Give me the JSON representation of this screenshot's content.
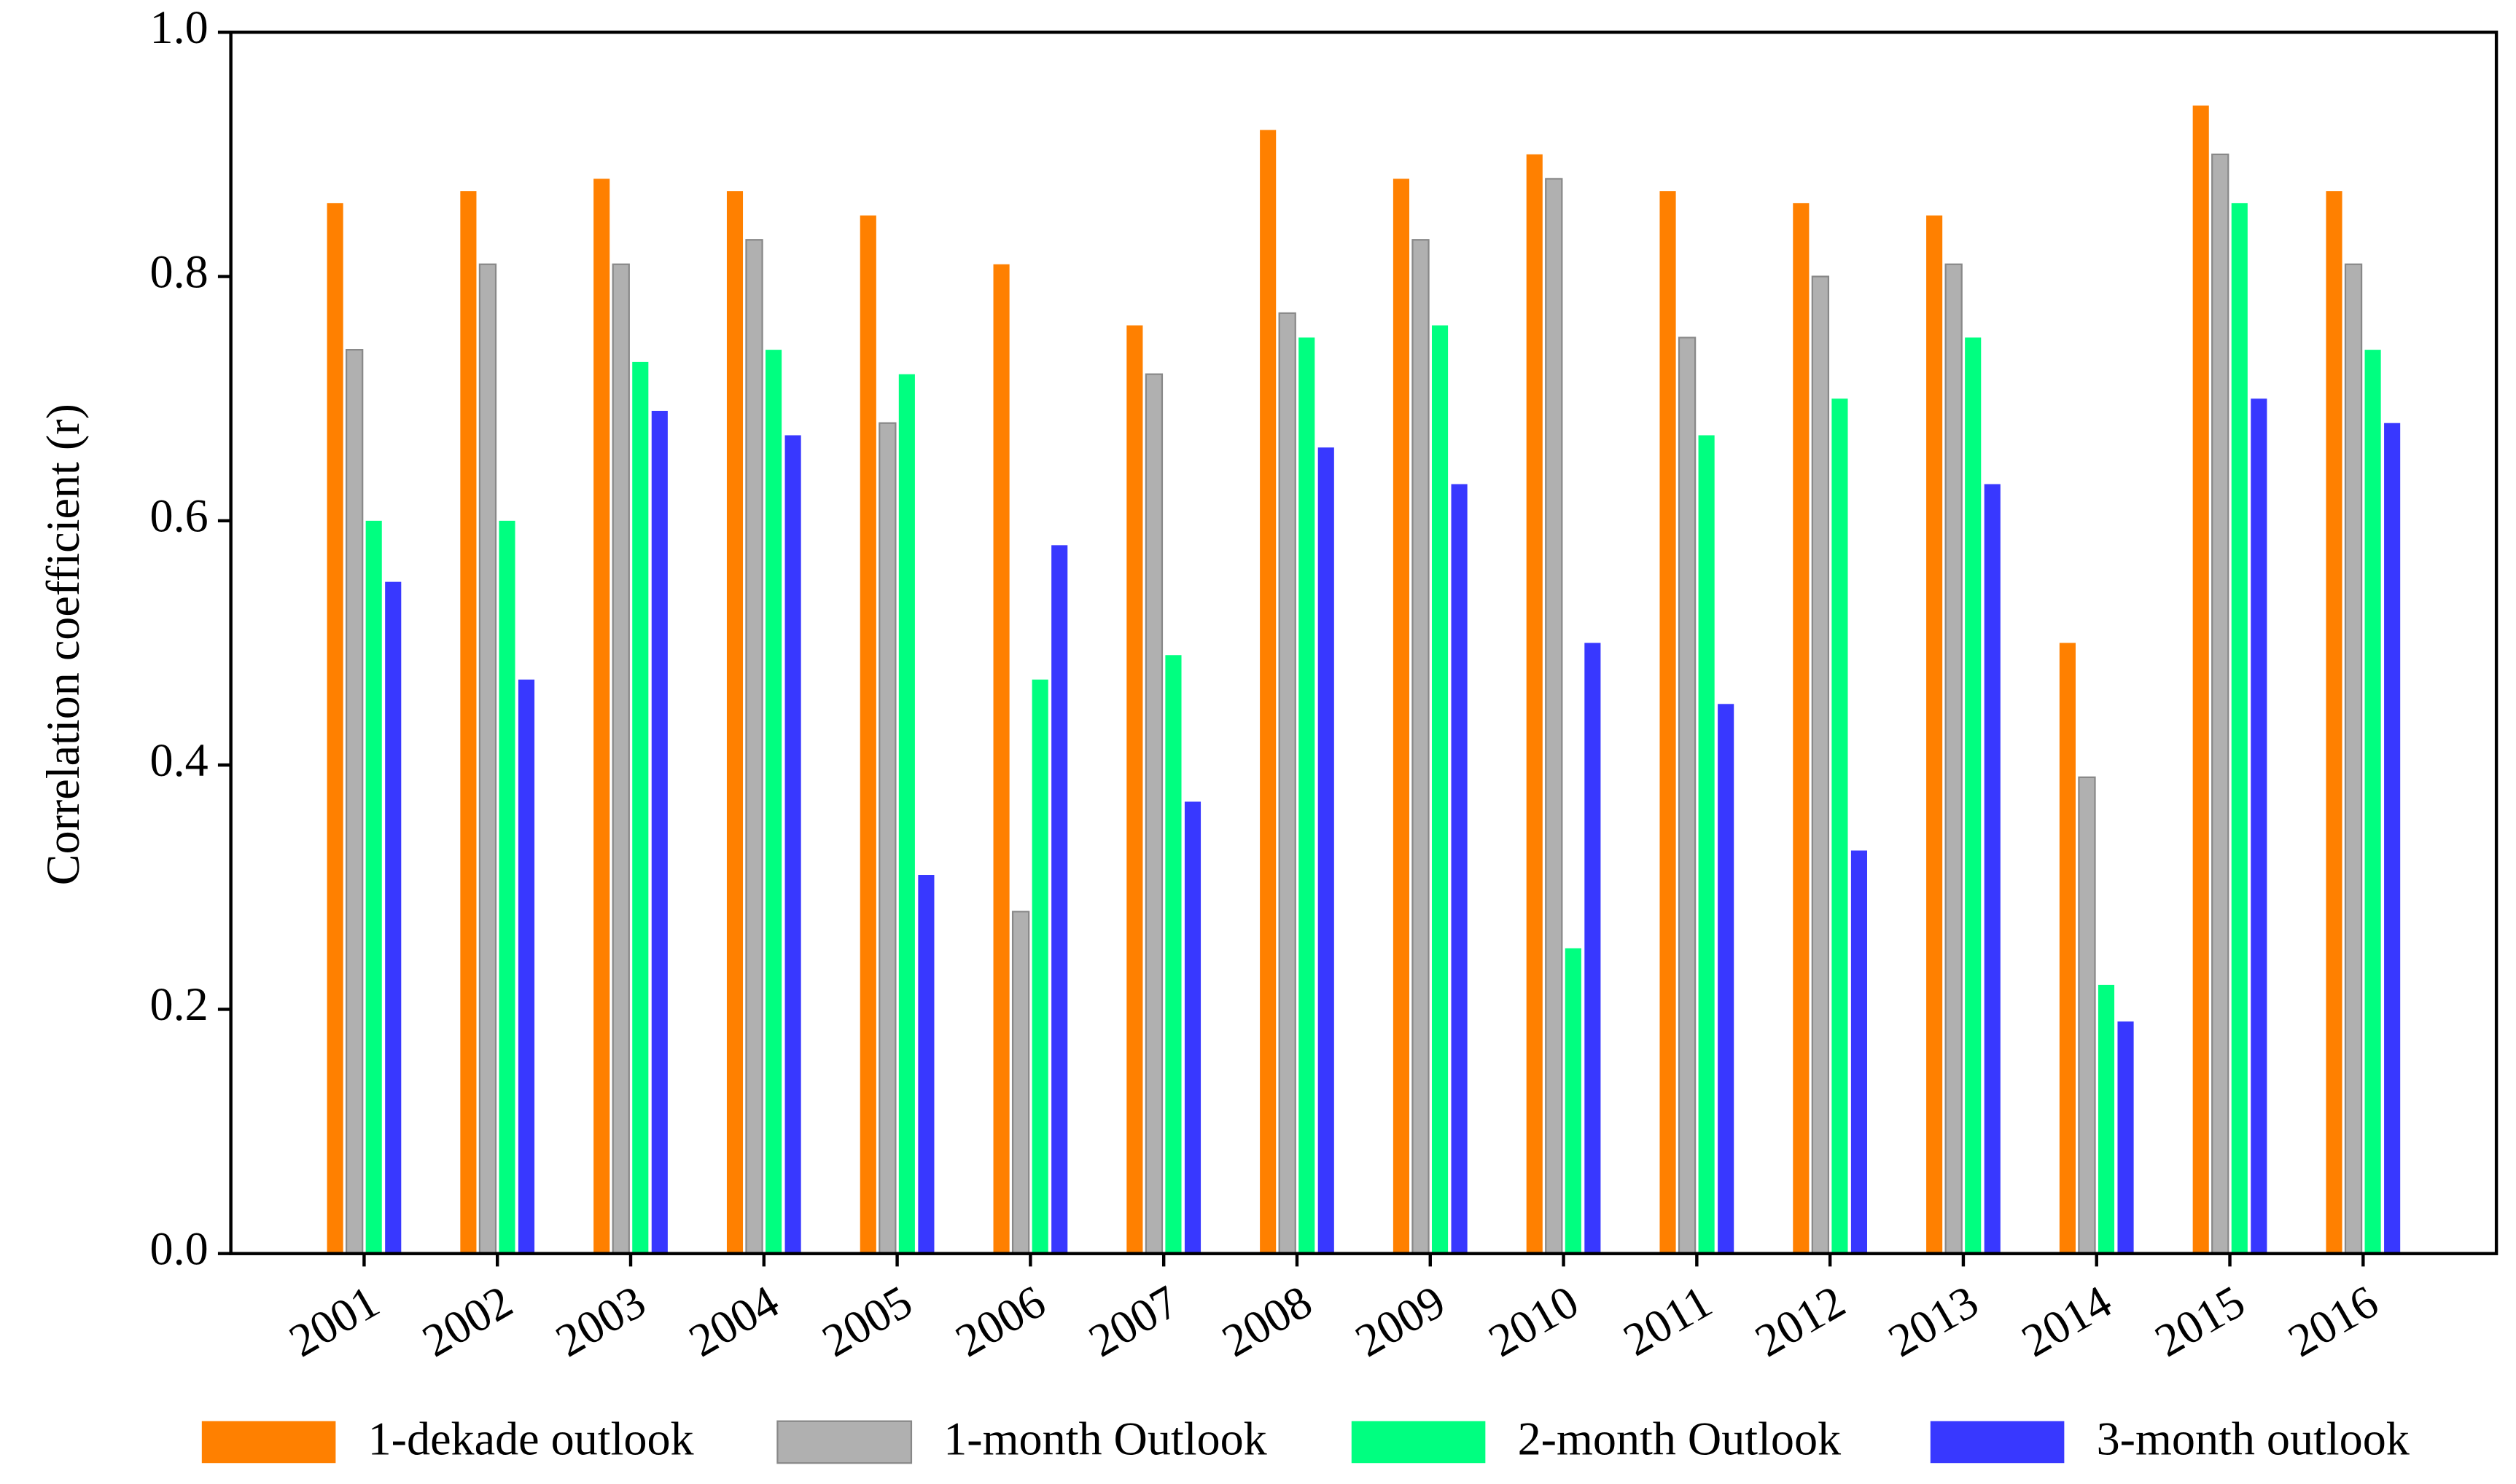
{
  "chart_data": {
    "type": "bar",
    "y_label": "Correlation coefficient (r)",
    "categories": [
      "2001",
      "2002",
      "2003",
      "2004",
      "2005",
      "2006",
      "2007",
      "2008",
      "2009",
      "2010",
      "2011",
      "2012",
      "2013",
      "2014",
      "2015",
      "2016"
    ],
    "series": [
      {
        "name": "1-dekade outlook",
        "color": "#ff8000",
        "values": [
          0.86,
          0.87,
          0.88,
          0.87,
          0.85,
          0.81,
          0.76,
          0.92,
          0.88,
          0.9,
          0.87,
          0.86,
          0.85,
          0.5,
          0.94,
          0.87
        ]
      },
      {
        "name": "1-month Outlook",
        "color": "#b0b0b0",
        "values": [
          0.74,
          0.81,
          0.81,
          0.83,
          0.68,
          0.28,
          0.72,
          0.77,
          0.83,
          0.88,
          0.75,
          0.8,
          0.81,
          0.39,
          0.9,
          0.81
        ]
      },
      {
        "name": "2-month Outlook",
        "color": "#00ff80",
        "values": [
          0.6,
          0.6,
          0.73,
          0.74,
          0.72,
          0.47,
          0.49,
          0.75,
          0.76,
          0.25,
          0.67,
          0.7,
          0.75,
          0.22,
          0.86,
          0.74
        ]
      },
      {
        "name": "3-month outlook",
        "color": "#3838ff",
        "values": [
          0.55,
          0.47,
          0.69,
          0.67,
          0.31,
          0.58,
          0.37,
          0.66,
          0.63,
          0.5,
          0.45,
          0.33,
          0.63,
          0.19,
          0.7,
          0.68
        ]
      }
    ],
    "ylim": [
      0,
      1
    ],
    "yticks": [
      {
        "value": 0,
        "label": "0.0"
      },
      0.2,
      0.4,
      0.6,
      0.8,
      {
        "value": 1,
        "label": "1.0"
      }
    ],
    "grid": false,
    "legend": "bottom"
  }
}
